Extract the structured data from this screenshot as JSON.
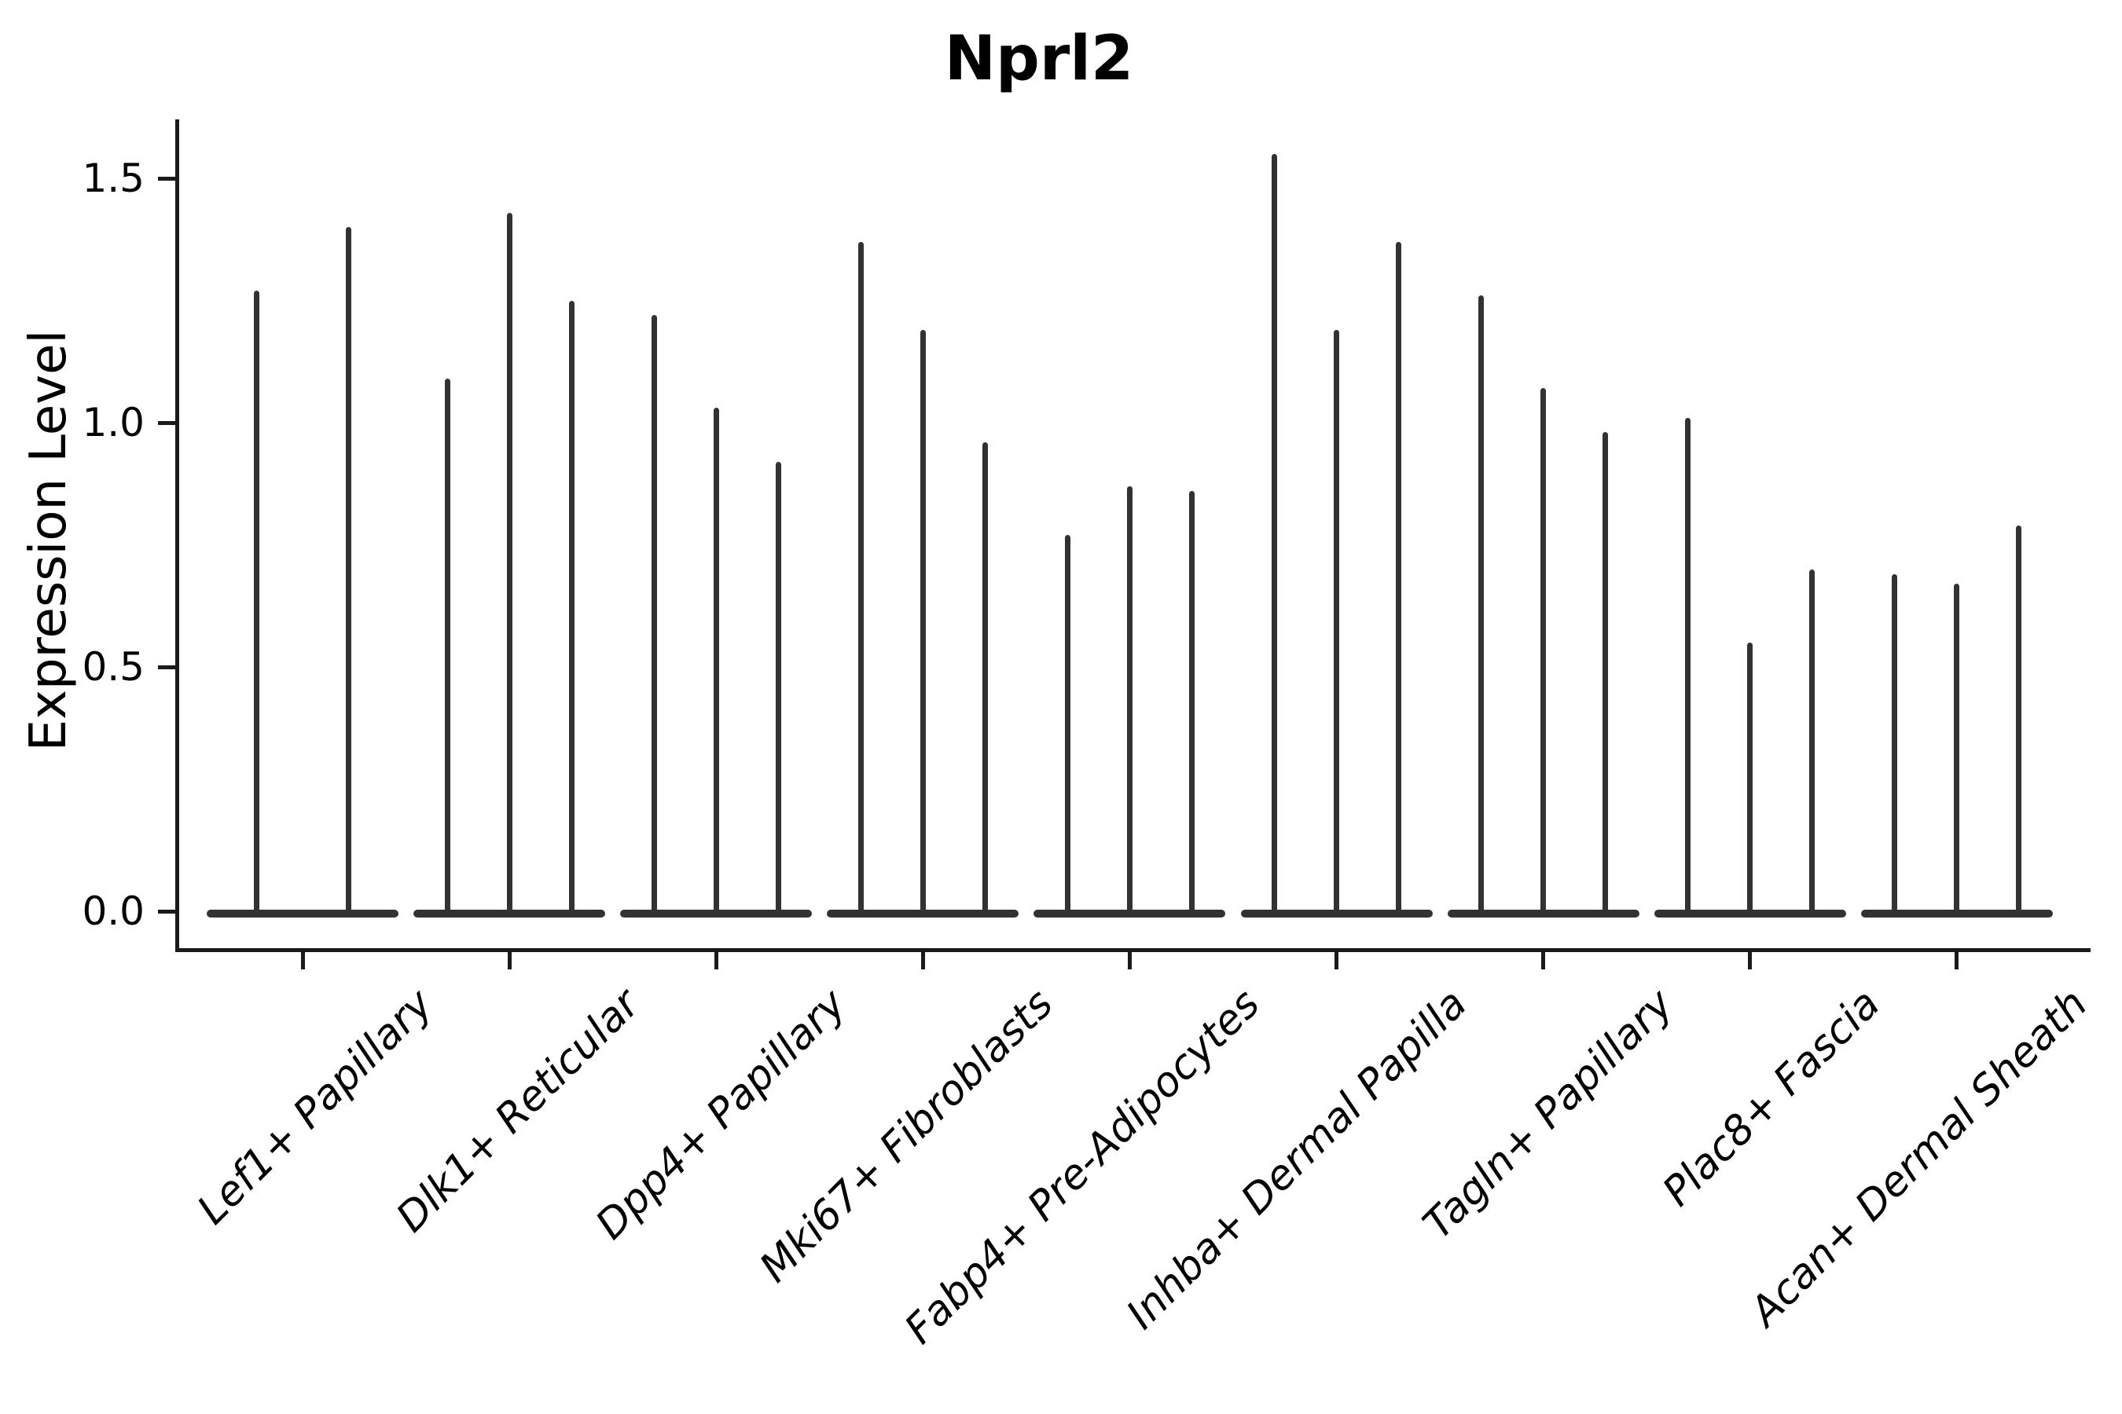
{
  "title": "Nprl2",
  "y_axis": {
    "label": "Expression Level",
    "ticks": [
      "0.0",
      "0.5",
      "1.0",
      "1.5"
    ],
    "tick_values": [
      0.0,
      0.5,
      1.0,
      1.5
    ]
  },
  "colors": {
    "violin": "#323232",
    "axis": "#1a1a1a",
    "background": "#ffffff",
    "text": "#000000"
  },
  "chart_data": {
    "type": "violin",
    "title": "Nprl2",
    "xlabel": "",
    "ylabel": "Expression Level",
    "ylim": [
      0,
      1.62
    ],
    "grid": false,
    "legend": "none",
    "x_tick_rotation_deg": 45,
    "x_tick_style": "italic",
    "baseline_value": 0.0,
    "categories": [
      "Lef1+ Papillary",
      "Dlk1+ Reticular",
      "Dpp4+ Papillary",
      "Mki67+ Fibroblasts",
      "Fabp4+ Pre-Adipocytes",
      "Inhba+ Dermal Papilla",
      "Tagln+ Papillary",
      "Plac8+ Fascia",
      "Acan+ Dermal Sheath"
    ],
    "series": [
      {
        "category": "Lef1+ Papillary",
        "max_expression_spikes": [
          1.27,
          1.4
        ]
      },
      {
        "category": "Dlk1+ Reticular",
        "max_expression_spikes": [
          1.09,
          1.43,
          1.25
        ]
      },
      {
        "category": "Dpp4+ Papillary",
        "max_expression_spikes": [
          1.22,
          1.03,
          0.92
        ]
      },
      {
        "category": "Mki67+ Fibroblasts",
        "max_expression_spikes": [
          1.37,
          1.19,
          0.96
        ]
      },
      {
        "category": "Fabp4+ Pre-Adipocytes",
        "max_expression_spikes": [
          0.77,
          0.87,
          0.86
        ]
      },
      {
        "category": "Inhba+ Dermal Papilla",
        "max_expression_spikes": [
          1.55,
          1.19,
          1.37
        ]
      },
      {
        "category": "Tagln+ Papillary",
        "max_expression_spikes": [
          1.26,
          1.07,
          0.98
        ]
      },
      {
        "category": "Plac8+ Fascia",
        "max_expression_spikes": [
          1.01,
          0.55,
          0.7
        ]
      },
      {
        "category": "Acan+ Dermal Sheath",
        "max_expression_spikes": [
          0.69,
          0.67,
          0.79
        ]
      }
    ]
  }
}
